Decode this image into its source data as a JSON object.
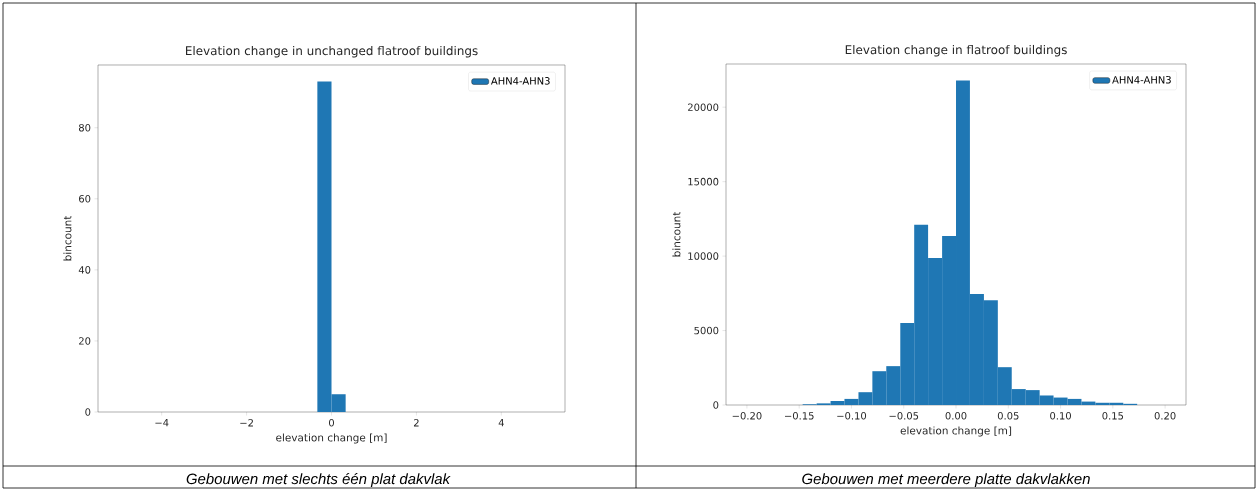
{
  "chart_data": [
    {
      "type": "histogram",
      "title": "Elevation change in unchanged flatroof buildings",
      "xlabel": "elevation change [m]",
      "ylabel": "bincount",
      "bins": [
        -5,
        -4.6667,
        -4.3333,
        -4,
        -3.6667,
        -3.3333,
        -3,
        -2.6667,
        -2.3333,
        -2,
        -1.6667,
        -1.3333,
        -1,
        -0.6667,
        -0.3333,
        0,
        0.3333,
        0.6667,
        1,
        1.3333,
        1.6667,
        2,
        2.3333,
        2.6667,
        3,
        3.3333,
        3.6667,
        4,
        4.3333,
        4.6667,
        5
      ],
      "series": [
        {
          "name": "AHN4-AHN3",
          "color": "#1f77b4",
          "values": [
            0,
            0,
            0,
            0,
            0,
            0,
            0,
            0,
            0,
            0,
            0,
            0,
            0,
            0,
            93,
            5,
            0,
            0,
            0,
            0,
            0,
            0,
            0,
            0,
            0,
            0,
            0,
            0,
            0,
            0
          ]
        }
      ],
      "xlim": [
        -5.5,
        5.5
      ],
      "ylim": [
        0,
        97.65
      ],
      "xticks": [
        {
          "value": -4,
          "label": "−4"
        },
        {
          "value": -2,
          "label": "−2"
        },
        0,
        2,
        4
      ],
      "yticks": [
        0,
        20,
        40,
        60,
        80
      ],
      "legend": "top right",
      "annotations": [
        "Gebouwen met slechts één plat dakvlak"
      ]
    },
    {
      "type": "histogram",
      "title": "Elevation change in flatroof buildings",
      "xlabel": "elevation change [m]",
      "ylabel": "bincount",
      "bins": [
        -0.2,
        -0.1867,
        -0.1733,
        -0.16,
        -0.1467,
        -0.1333,
        -0.12,
        -0.1067,
        -0.0933,
        -0.08,
        -0.0667,
        -0.0533,
        -0.04,
        -0.0267,
        -0.0133,
        0,
        0.0133,
        0.0267,
        0.04,
        0.0533,
        0.0667,
        0.08,
        0.0933,
        0.1067,
        0.12,
        0.1333,
        0.1467,
        0.16,
        0.1733,
        0.1867,
        0.2
      ],
      "series": [
        {
          "name": "AHN4-AHN3",
          "color": "#1f77b4",
          "values": [
            0,
            0,
            0,
            0,
            50,
            110,
            270,
            410,
            860,
            2270,
            2610,
            5500,
            12100,
            9870,
            11350,
            21800,
            7450,
            7040,
            2540,
            1070,
            1000,
            640,
            500,
            410,
            230,
            150,
            150,
            80,
            0,
            0
          ]
        }
      ],
      "xlim": [
        -0.22,
        0.22
      ],
      "ylim": [
        0,
        22900
      ],
      "xticks": [
        {
          "value": -0.2,
          "label": "−0.20"
        },
        {
          "value": -0.15,
          "label": "−0.15"
        },
        {
          "value": -0.1,
          "label": "−0.10"
        },
        {
          "value": -0.05,
          "label": "−0.05"
        },
        {
          "value": 0,
          "label": "0.00"
        },
        {
          "value": 0.05,
          "label": "0.05"
        },
        {
          "value": 0.1,
          "label": "0.10"
        },
        {
          "value": 0.15,
          "label": "0.15"
        },
        {
          "value": 0.2,
          "label": "0.20"
        }
      ],
      "yticks": [
        0,
        5000,
        10000,
        15000,
        20000
      ],
      "legend": "top right",
      "annotations": [
        "Gebouwen met meerdere platte dakvlakken"
      ]
    }
  ]
}
